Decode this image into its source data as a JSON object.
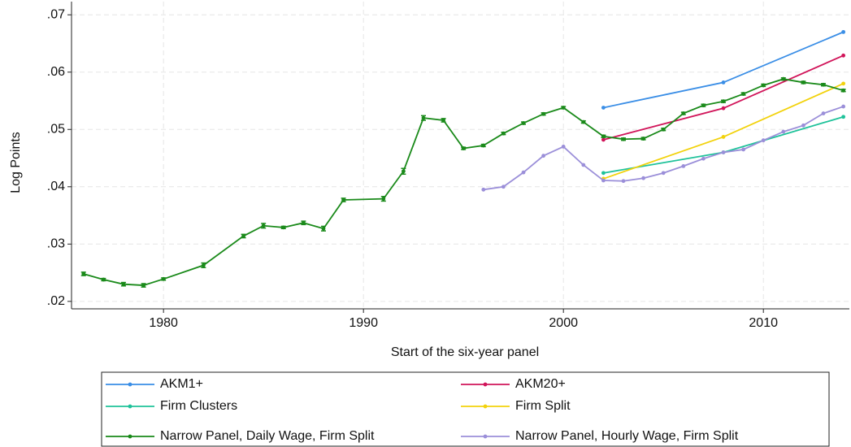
{
  "chart_data": {
    "type": "line",
    "xlabel": "Start of the six-year panel",
    "ylabel": "Log Points",
    "xlim": [
      1975.4,
      2014.3
    ],
    "ylim": [
      0.0187,
      0.0723
    ],
    "xticks": [
      1980,
      1990,
      2000,
      2010
    ],
    "yticks": [
      {
        "value": 0.02,
        "label": ".02"
      },
      {
        "value": 0.03,
        "label": ".03"
      },
      {
        "value": 0.04,
        "label": ".04"
      },
      {
        "value": 0.05,
        "label": ".05"
      },
      {
        "value": 0.06,
        "label": ".06"
      },
      {
        "value": 0.07,
        "label": ".07"
      }
    ],
    "grid": true,
    "legend": "bottom",
    "series": [
      {
        "name": "AKM1+",
        "color": "#3a8ee6",
        "x": [
          2002,
          2008,
          2014
        ],
        "values": [
          0.0538,
          0.0582,
          0.067
        ]
      },
      {
        "name": "AKM20+",
        "color": "#d1155a",
        "x": [
          2002,
          2008,
          2014
        ],
        "values": [
          0.0482,
          0.0537,
          0.0629
        ]
      },
      {
        "name": "Firm Clusters",
        "color": "#1fc29a",
        "x": [
          2002,
          2008,
          2014
        ],
        "values": [
          0.0424,
          0.046,
          0.0522
        ]
      },
      {
        "name": "Firm Split",
        "color": "#f2d20c",
        "x": [
          2002,
          2008,
          2014
        ],
        "values": [
          0.0414,
          0.0487,
          0.058
        ]
      },
      {
        "name": "Narrow Panel, Daily Wage, Firm Split",
        "color": "#1a8a1a",
        "x": [
          1976,
          1977,
          1978,
          1979,
          1980,
          1982,
          1984,
          1985,
          1986,
          1987,
          1988,
          1989,
          1991,
          1992,
          1993,
          1994,
          1995,
          1996,
          1997,
          1998,
          1999,
          2000,
          2001,
          2002,
          2003,
          2004,
          2005,
          2006,
          2007,
          2008,
          2009,
          2010,
          2011,
          2012,
          2013,
          2014
        ],
        "values": [
          0.0248,
          0.0238,
          0.023,
          0.0228,
          0.0239,
          0.0263,
          0.0314,
          0.0332,
          0.0329,
          0.0337,
          0.0327,
          0.0377,
          0.0379,
          0.0427,
          0.052,
          0.0516,
          0.0467,
          0.0472,
          0.0493,
          0.0511,
          0.0527,
          0.0538,
          0.0513,
          0.0488,
          0.0483,
          0.0484,
          0.05,
          0.0528,
          0.0542,
          0.0549,
          0.0562,
          0.0577,
          0.0588,
          0.0582,
          0.0578,
          0.0568
        ],
        "errors": [
          0.0003,
          0.0002,
          0.0003,
          0.0003,
          0.0002,
          0.0004,
          0.0003,
          0.0004,
          0.0002,
          0.0003,
          0.0004,
          0.0003,
          0.0004,
          0.0005,
          0.0004,
          0.0003,
          0.0002,
          0.0002,
          0.0002,
          0.0002,
          0.0002,
          0.0002,
          0.0002,
          0.0002,
          0.0002,
          0.0002,
          0.0002,
          0.0002,
          0.0002,
          0.0002,
          0.0002,
          0.0002,
          0.0002,
          0.0002,
          0.0002,
          0.0002
        ]
      },
      {
        "name": "Narrow Panel, Hourly Wage, Firm Split",
        "color": "#9b8fd9",
        "x": [
          1996,
          1997,
          1998,
          1999,
          2000,
          2001,
          2002,
          2003,
          2004,
          2005,
          2006,
          2007,
          2008,
          2009,
          2010,
          2011,
          2012,
          2013,
          2014
        ],
        "values": [
          0.0395,
          0.04,
          0.0425,
          0.0454,
          0.047,
          0.0438,
          0.0411,
          0.041,
          0.0415,
          0.0424,
          0.0436,
          0.0449,
          0.046,
          0.0465,
          0.0481,
          0.0496,
          0.0507,
          0.0528,
          0.054
        ]
      }
    ]
  }
}
